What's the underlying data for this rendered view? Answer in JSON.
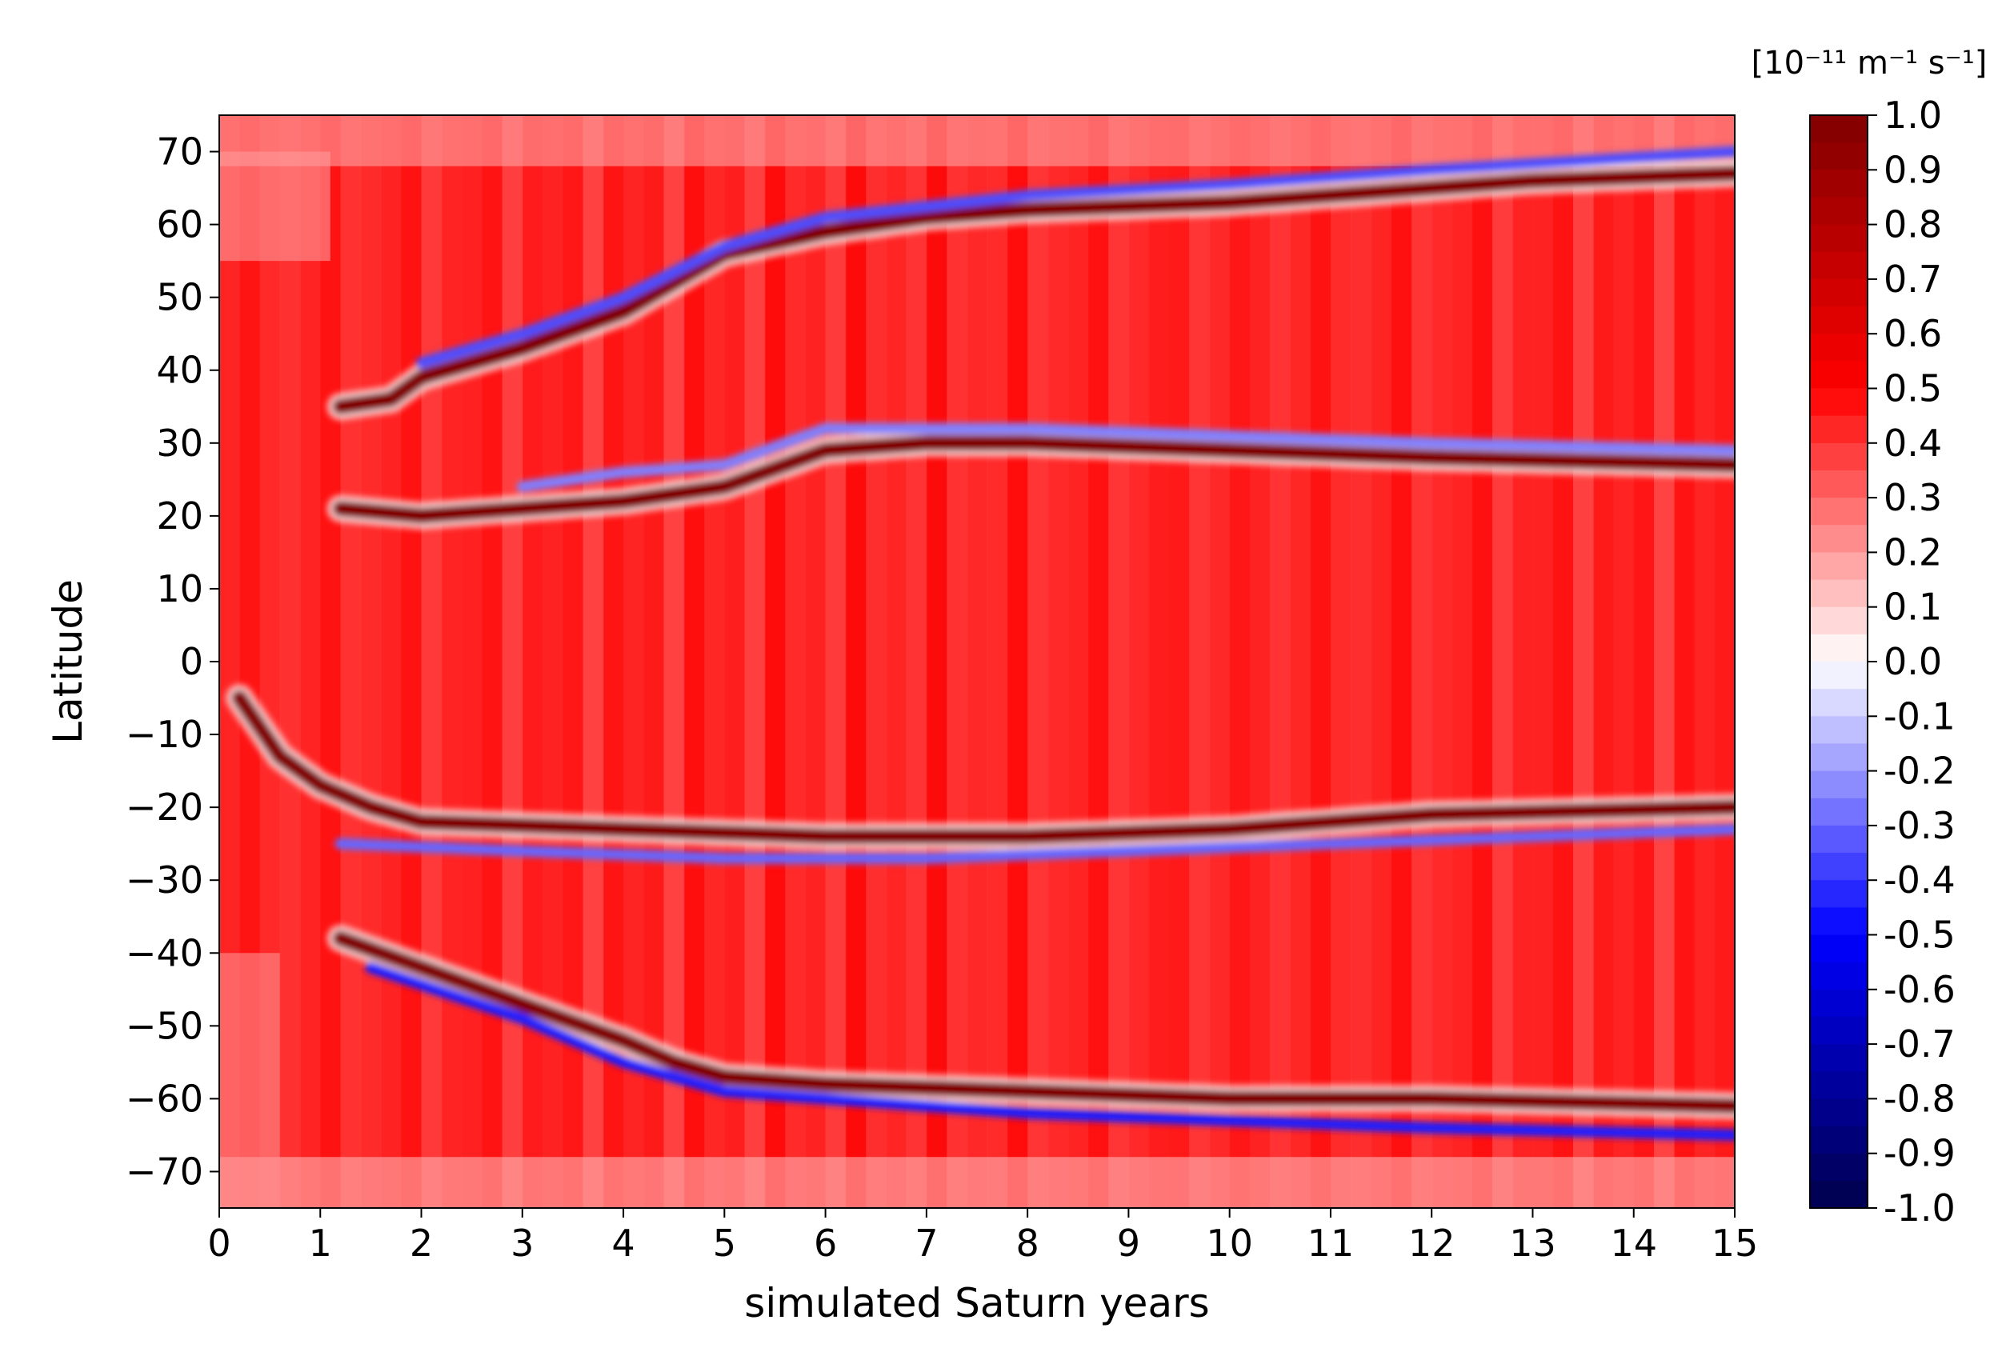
{
  "chart_data": {
    "type": "heatmap",
    "title": "",
    "xlabel": "simulated Saturn years",
    "ylabel": "Latitude",
    "xlim": [
      0,
      15
    ],
    "ylim": [
      -75,
      75
    ],
    "x_ticks": [
      "0",
      "1",
      "2",
      "3",
      "4",
      "5",
      "6",
      "7",
      "8",
      "9",
      "10",
      "11",
      "12",
      "13",
      "14",
      "15"
    ],
    "y_ticks": [
      "70",
      "60",
      "50",
      "40",
      "30",
      "20",
      "10",
      "0",
      "−10",
      "−20",
      "−30",
      "−40",
      "−50",
      "−60",
      "−70"
    ],
    "colorbar": {
      "unit": "[10⁻¹¹ m⁻¹ s⁻¹]",
      "range": [
        -1.0,
        1.0
      ],
      "ticks": [
        "1.0",
        "0.9",
        "0.8",
        "0.7",
        "0.6",
        "0.5",
        "0.4",
        "0.3",
        "0.2",
        "0.1",
        "0.0",
        "-0.1",
        "-0.2",
        "-0.3",
        "-0.4",
        "-0.5",
        "-0.6",
        "-0.7",
        "-0.8",
        "-0.9",
        "-1.0"
      ],
      "colormap": "seismic",
      "colors": {
        "low": "#00004c",
        "mid": "#ffffff",
        "high": "#800000"
      }
    },
    "background_value": 0.45,
    "features": [
      {
        "name": "northern-high-latitude-ridge",
        "value": 1.0,
        "points": [
          [
            1.2,
            35
          ],
          [
            1.7,
            36
          ],
          [
            2,
            39
          ],
          [
            3,
            43
          ],
          [
            4,
            48
          ],
          [
            5,
            56
          ],
          [
            6,
            59
          ],
          [
            7,
            61
          ],
          [
            8,
            62
          ],
          [
            10,
            63
          ],
          [
            12,
            65
          ],
          [
            13,
            66
          ],
          [
            15,
            67
          ]
        ]
      },
      {
        "name": "northern-mid-latitude-ridge",
        "value": 1.0,
        "points": [
          [
            1.2,
            21
          ],
          [
            2,
            20
          ],
          [
            3,
            21
          ],
          [
            4,
            22
          ],
          [
            5,
            24
          ],
          [
            6,
            29
          ],
          [
            7,
            30
          ],
          [
            8,
            30
          ],
          [
            10,
            29
          ],
          [
            12,
            28
          ],
          [
            15,
            27
          ]
        ]
      },
      {
        "name": "southern-mid-latitude-ridge",
        "value": 1.0,
        "points": [
          [
            0.2,
            -5
          ],
          [
            0.6,
            -13
          ],
          [
            1,
            -17
          ],
          [
            1.5,
            -20
          ],
          [
            2,
            -22
          ],
          [
            4,
            -23
          ],
          [
            6,
            -24
          ],
          [
            8,
            -24
          ],
          [
            10,
            -23
          ],
          [
            12,
            -21
          ],
          [
            15,
            -20
          ]
        ]
      },
      {
        "name": "southern-high-latitude-ridge",
        "value": 1.0,
        "points": [
          [
            1.2,
            -38
          ],
          [
            2,
            -42
          ],
          [
            3,
            -47
          ],
          [
            4,
            -52
          ],
          [
            4.5,
            -55
          ],
          [
            5,
            -57
          ],
          [
            6,
            -58
          ],
          [
            8,
            -59
          ],
          [
            10,
            -60
          ],
          [
            12,
            -60
          ],
          [
            15,
            -61
          ]
        ]
      },
      {
        "name": "northern-trough-1",
        "value": -0.35,
        "points": [
          [
            2,
            41
          ],
          [
            3,
            45
          ],
          [
            4,
            50
          ],
          [
            5,
            57
          ],
          [
            6,
            61
          ],
          [
            7,
            62.5
          ],
          [
            8,
            64
          ],
          [
            10,
            65.5
          ],
          [
            12,
            67.5
          ],
          [
            15,
            70
          ]
        ]
      },
      {
        "name": "northern-trough-2",
        "value": -0.25,
        "points": [
          [
            3,
            24
          ],
          [
            4,
            26
          ],
          [
            5,
            27
          ],
          [
            6,
            32
          ],
          [
            8,
            32
          ],
          [
            10,
            31
          ],
          [
            12,
            30
          ],
          [
            15,
            29
          ]
        ]
      },
      {
        "name": "southern-trough-1",
        "value": -0.3,
        "points": [
          [
            1.2,
            -25
          ],
          [
            3,
            -26
          ],
          [
            5,
            -27
          ],
          [
            7,
            -27
          ],
          [
            9,
            -26
          ],
          [
            11,
            -25
          ],
          [
            13,
            -24
          ],
          [
            15,
            -23
          ]
        ]
      },
      {
        "name": "southern-trough-2",
        "value": -0.45,
        "points": [
          [
            1.5,
            -42
          ],
          [
            3,
            -49
          ],
          [
            4,
            -55
          ],
          [
            5,
            -59
          ],
          [
            6,
            -60
          ],
          [
            8,
            -62
          ],
          [
            10,
            -63
          ],
          [
            12,
            -64
          ],
          [
            15,
            -65
          ]
        ]
      }
    ]
  }
}
